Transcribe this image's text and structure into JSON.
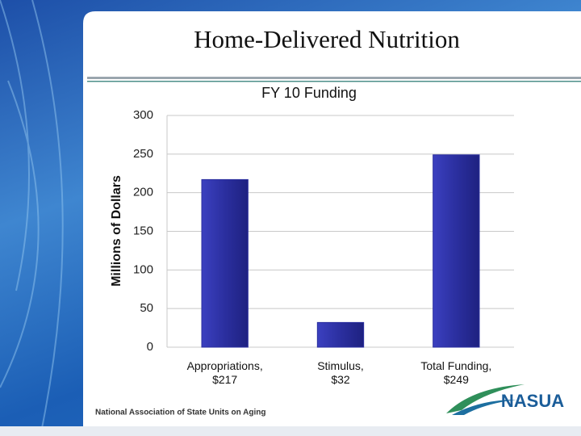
{
  "slide_title": "Home-Delivered Nutrition",
  "chart_data": {
    "type": "bar",
    "title": "FY 10 Funding",
    "y_label": "Millions of Dollars",
    "categories": [
      "Appropriations,\n$217",
      "Stimulus,\n$32",
      "Total Funding,\n$249"
    ],
    "values": [
      217,
      32,
      249
    ],
    "color": "#2b2f9f",
    "ylim": [
      0,
      300
    ],
    "yticks": [
      0,
      50,
      100,
      150,
      200,
      250,
      300
    ],
    "grid": true
  },
  "footer": {
    "text": "National Association of State Units on Aging",
    "logo": "NASUA"
  }
}
